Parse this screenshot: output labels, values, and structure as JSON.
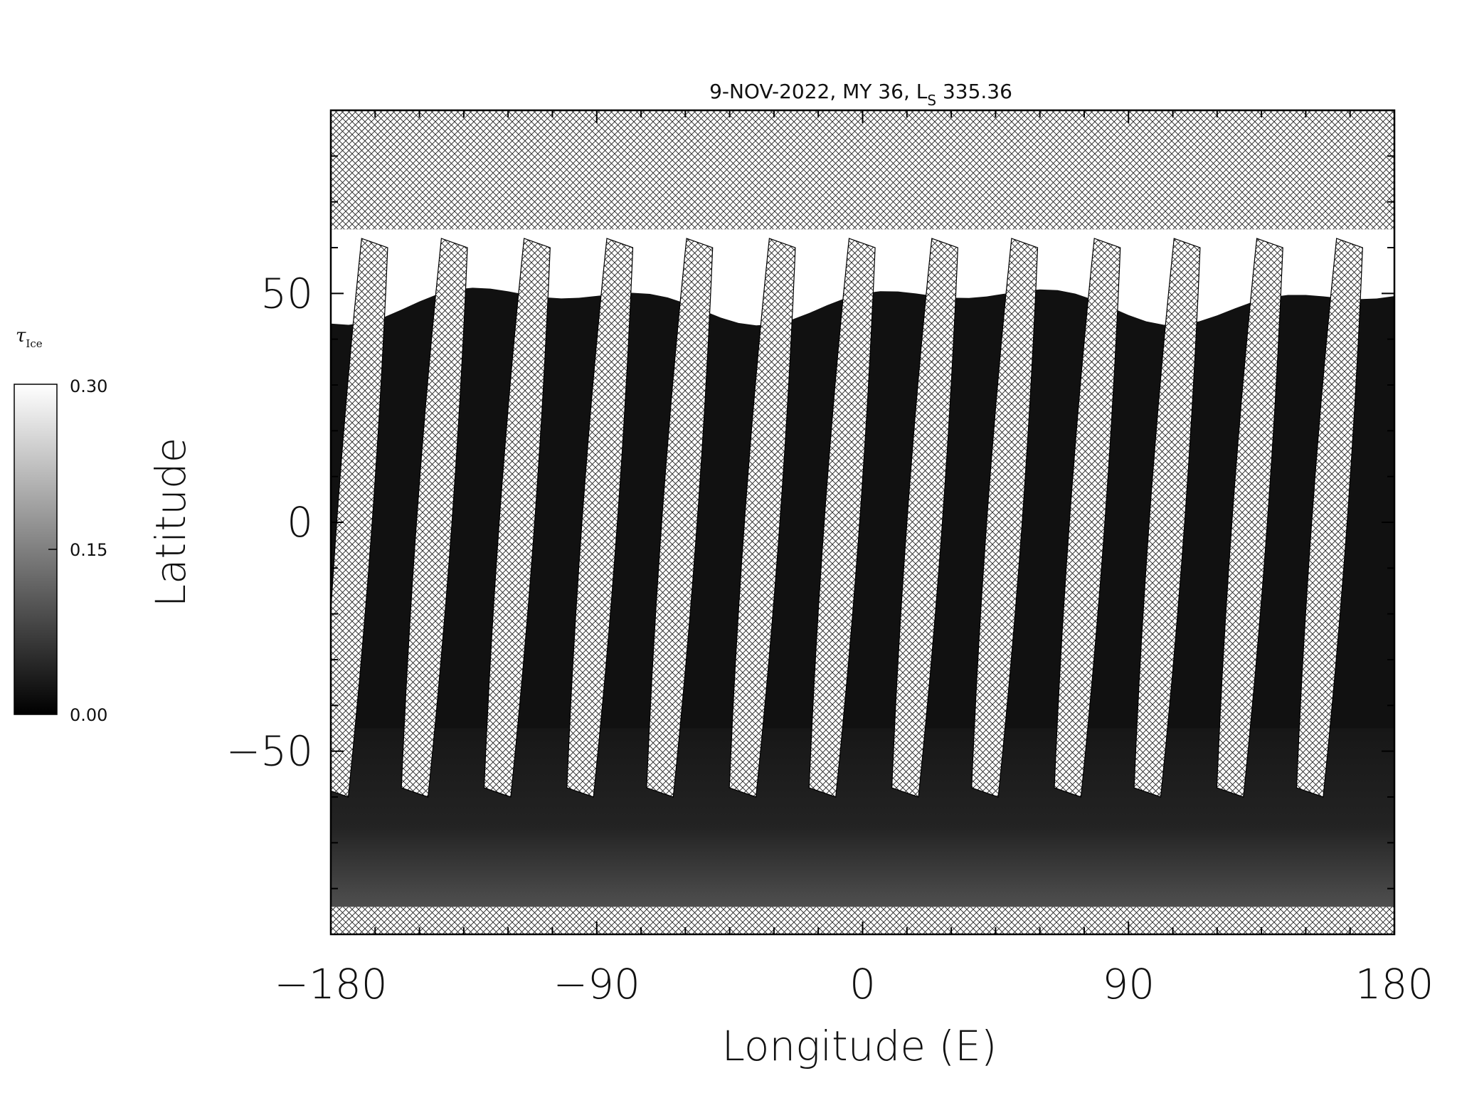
{
  "chart_data": {
    "type": "heatmap",
    "title": "9-NOV-2022, MY 36,  L",
    "title_sub": "S",
    "title_tail": " 335.36",
    "xlabel": "Longitude (E)",
    "ylabel": "Latitude",
    "xlim": [
      -180,
      180
    ],
    "ylim": [
      -90,
      90
    ],
    "x_ticks": [
      -180,
      -90,
      0,
      90,
      180
    ],
    "x_tick_labels": [
      "−180",
      "−90",
      "0",
      "90",
      "180"
    ],
    "y_ticks": [
      -50,
      0,
      50
    ],
    "y_tick_labels": [
      "−50",
      "0",
      "50"
    ],
    "colorbar": {
      "label": "τ",
      "label_sub": "Ice",
      "range": [
        0.0,
        0.3
      ],
      "ticks": [
        "0.00",
        "0.15",
        "0.30"
      ],
      "colormap": "grayscale",
      "min_color": "#000000",
      "max_color": "#ffffff"
    },
    "no_data_pattern": "crosshatch",
    "observations": {
      "orbit_strip_count": 13,
      "strip_center_longitudes_at_equator": [
        -172,
        -145,
        -117,
        -89,
        -62,
        -34,
        -7,
        21,
        48,
        76,
        103,
        131,
        158
      ],
      "strip_width_deg": 12,
      "strip_tilt_deg_per_90lat": -10,
      "data_lat_range": [
        -84,
        64
      ],
      "north_ice_cap_boundary_lat": 48,
      "north_cap_tau": 0.3,
      "background_tau": 0.02
    }
  }
}
